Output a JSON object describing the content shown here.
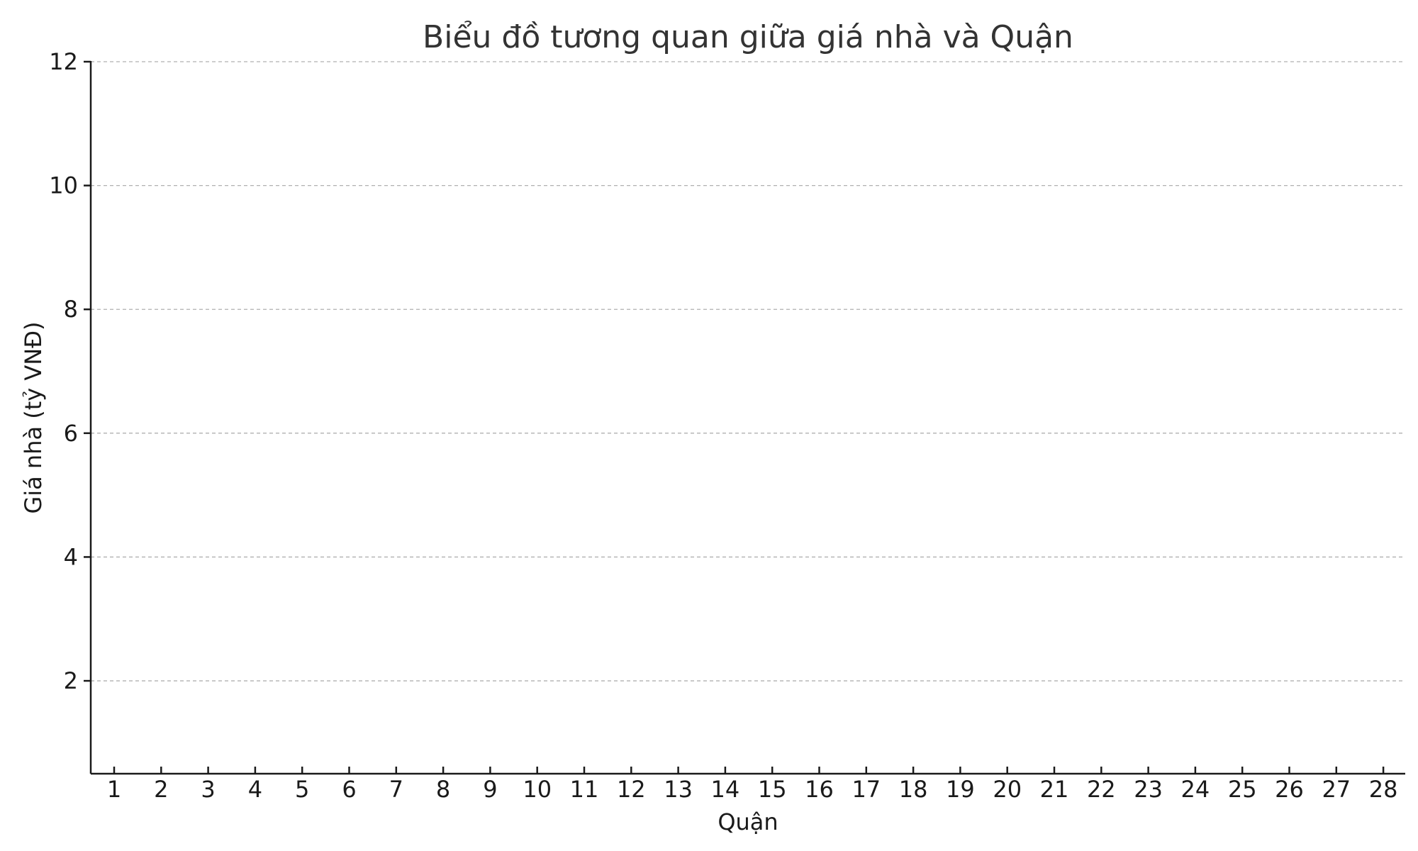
{
  "chart_data": {
    "type": "scatter",
    "title": "Biểu đồ tương quan giữa giá nhà và Quận",
    "xlabel": "Quận",
    "ylabel": "Giá nhà (tỷ VNĐ)",
    "categories": [
      "1",
      "2",
      "3",
      "4",
      "5",
      "6",
      "7",
      "8",
      "9",
      "10",
      "11",
      "12",
      "13",
      "14",
      "15",
      "16",
      "17",
      "18",
      "19",
      "20",
      "21",
      "22",
      "23",
      "24",
      "25",
      "26",
      "27",
      "28"
    ],
    "y_ticks": [
      "2",
      "4",
      "6",
      "8",
      "10",
      "12"
    ],
    "ylim": [
      0.5,
      12
    ],
    "grid": true,
    "series": []
  }
}
